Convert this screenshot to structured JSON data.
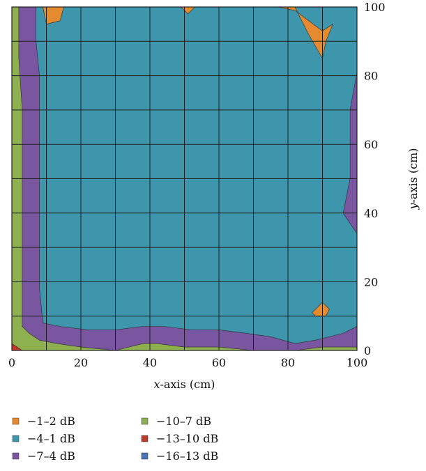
{
  "chart_data": {
    "type": "heatmap",
    "title": "",
    "xlabel_var": "x",
    "xlabel_rest": "-axis (cm)",
    "ylabel_var": "y",
    "ylabel_rest": "-axis (cm)",
    "xlim": [
      0,
      100
    ],
    "ylim": [
      0,
      100
    ],
    "x_ticks": [
      0,
      20,
      40,
      60,
      80,
      100
    ],
    "y_ticks": [
      0,
      20,
      40,
      60,
      80,
      100
    ],
    "x_tick_labels": [
      "0",
      "20",
      "40",
      "60",
      "80",
      "100"
    ],
    "y_tick_labels": [
      "0",
      "20",
      "40",
      "60",
      "80",
      "100"
    ],
    "grid": true,
    "grid_step": 10,
    "legend_position": "bottom",
    "levels": [
      {
        "label": "−1–2 dB",
        "color": "#e58a2e"
      },
      {
        "label": "−4–1 dB",
        "color": "#3e96ad"
      },
      {
        "label": "−7–4 dB",
        "color": "#7a55a0"
      },
      {
        "label": "−10–7 dB",
        "color": "#8fb050"
      },
      {
        "label": "−13–10 dB",
        "color": "#c0392b"
      },
      {
        "label": "−16–13 dB",
        "color": "#4a73b8"
      }
    ],
    "regions": [
      {
        "level": 1,
        "points": [
          [
            0,
            0
          ],
          [
            100,
            0
          ],
          [
            100,
            100
          ],
          [
            0,
            100
          ]
        ]
      },
      {
        "level": 2,
        "points": [
          [
            0,
            0
          ],
          [
            100,
            0
          ],
          [
            100,
            7
          ],
          [
            96,
            5
          ],
          [
            88,
            3
          ],
          [
            82,
            2
          ],
          [
            75,
            4
          ],
          [
            68,
            5
          ],
          [
            60,
            6
          ],
          [
            52,
            6
          ],
          [
            44,
            7
          ],
          [
            38,
            7
          ],
          [
            30,
            6
          ],
          [
            22,
            6
          ],
          [
            14,
            7
          ],
          [
            9,
            8
          ],
          [
            8,
            18
          ],
          [
            8,
            40
          ],
          [
            8,
            60
          ],
          [
            8,
            80
          ],
          [
            7,
            90
          ],
          [
            7,
            100
          ],
          [
            0,
            100
          ]
        ]
      },
      {
        "level": 2,
        "points": [
          [
            100,
            81
          ],
          [
            98,
            70
          ],
          [
            98,
            50
          ],
          [
            96,
            40
          ],
          [
            100,
            34
          ]
        ]
      },
      {
        "level": 3,
        "points": [
          [
            0,
            0
          ],
          [
            100,
            0
          ],
          [
            100,
            1
          ],
          [
            90,
            1
          ],
          [
            82,
            0
          ],
          [
            70,
            0
          ],
          [
            60,
            1
          ],
          [
            50,
            1
          ],
          [
            42,
            2
          ],
          [
            38,
            2
          ],
          [
            30,
            0
          ],
          [
            20,
            1
          ],
          [
            13,
            2
          ],
          [
            8,
            3
          ],
          [
            5,
            5
          ],
          [
            3,
            7
          ],
          [
            3,
            15
          ],
          [
            3,
            30
          ],
          [
            3,
            50
          ],
          [
            3,
            70
          ],
          [
            2,
            85
          ],
          [
            2,
            100
          ],
          [
            0,
            100
          ]
        ]
      },
      {
        "level": 0,
        "points": [
          [
            9,
            100
          ],
          [
            10,
            95
          ],
          [
            14,
            96
          ],
          [
            15,
            100
          ]
        ]
      },
      {
        "level": 0,
        "points": [
          [
            49,
            100
          ],
          [
            51,
            98
          ],
          [
            53,
            100
          ]
        ]
      },
      {
        "level": 0,
        "points": [
          [
            77,
            100
          ],
          [
            82,
            99
          ],
          [
            90,
            93
          ],
          [
            93,
            95
          ],
          [
            91,
            90
          ],
          [
            90,
            85
          ],
          [
            86,
            92
          ],
          [
            84,
            96
          ],
          [
            82,
            100
          ]
        ]
      },
      {
        "level": 0,
        "points": [
          [
            87,
            11
          ],
          [
            90,
            14
          ],
          [
            92,
            12
          ],
          [
            91,
            10
          ],
          [
            88,
            10
          ]
        ]
      },
      {
        "level": 4,
        "points": [
          [
            0,
            0
          ],
          [
            3,
            0
          ],
          [
            0,
            2
          ]
        ]
      }
    ]
  }
}
